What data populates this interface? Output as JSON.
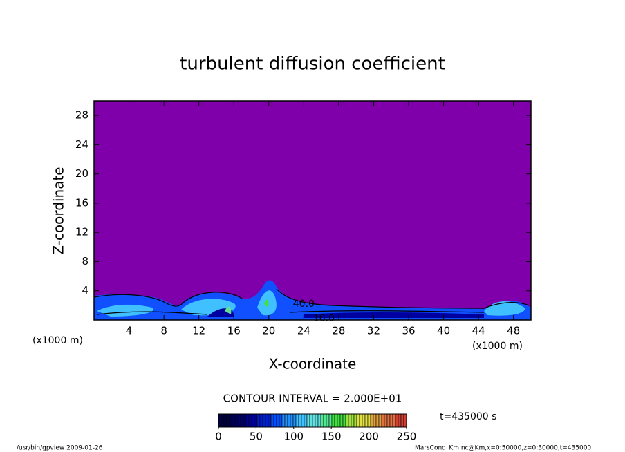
{
  "chart_data": {
    "type": "contour",
    "title": "turbulent diffusion coefficient",
    "xlabel": "X-coordinate",
    "ylabel": "Z-coordinate",
    "xunit": "(x1000 m)",
    "xlim": [
      0,
      50
    ],
    "xticks": [
      4,
      8,
      12,
      16,
      20,
      24,
      28,
      32,
      36,
      40,
      44,
      48
    ],
    "ylim": [
      0,
      30
    ],
    "yticks": [
      4,
      8,
      12,
      16,
      20,
      24,
      28
    ],
    "background": "#7f00aa",
    "contour_labels": [
      {
        "level": {
          "value": 40,
          "label": "40.0"
        },
        "x": 24.0,
        "z": 2.2
      },
      {
        "level": {
          "value": 10,
          "label": "10.0"
        },
        "x": 26.3,
        "z": 0.2
      }
    ],
    "colorbar": {
      "lim": [
        0,
        250
      ],
      "ticks": [
        0,
        50,
        100,
        150,
        200,
        250
      ],
      "colors": [
        "#000040",
        "#00006a",
        "#0000a0",
        "#0020d0",
        "#0050ff",
        "#2090ff",
        "#40c0ff",
        "#60e0e0",
        "#50e890",
        "#40e040",
        "#a0e040",
        "#e0e040",
        "#e0a040",
        "#e07040",
        "#d04030"
      ]
    },
    "contour_interval": "CONTOUR INTERVAL = 2.000E+01",
    "time_label": "t=435000 s",
    "footer_left": "/usr/bin/gpview  2009-01-26",
    "footer_right": "MarsCond_Km.nc@Km,x=0:50000,z=0:30000,t=435000"
  }
}
